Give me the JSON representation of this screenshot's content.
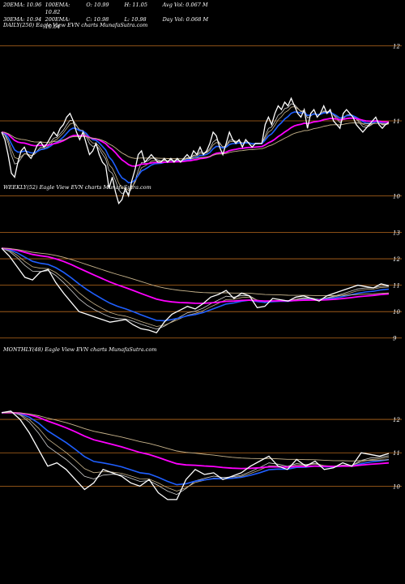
{
  "stats": {
    "row1": [
      "20EMA: 10.96",
      "100EMA: 10.82",
      "O: 10.99",
      "Avg Vol: 0.067 M"
    ],
    "row2": [
      "30EMA: 10.94",
      "200EMA: 10.64",
      "C: 10.98",
      "L: 10.98",
      "Day Vol: 0.068 M"
    ],
    "row1_mid": "H: 11.05"
  },
  "panels": {
    "daily_title": "DAILY(250) Eagle View EVN charts MunafaSutra.com",
    "weekly_title": "WEEKLY(52) Eagle View EVN charts MunafaSutra.com",
    "monthly_title": "MONTHLY(48) Eagle View EVN charts MunafaSutra.com"
  },
  "colors": {
    "background": "#000000",
    "price": "#ffffff",
    "ema_blue": "#1f5fff",
    "ema_magenta": "#ff00ff",
    "ema_tan": "#c8b48c",
    "ema_gray": "#d0d0d0",
    "grid": "#b86a1e"
  },
  "chart_data": [
    {
      "type": "line",
      "title": "DAILY(250) Eagle View EVN charts MunafaSutra.com",
      "y_ticks": [
        12,
        11,
        10
      ],
      "ylim": [
        9.8,
        12.2
      ],
      "series": [
        {
          "values": [
            10.85,
            10.75,
            10.55,
            10.3,
            10.25,
            10.45,
            10.6,
            10.65,
            10.55,
            10.5,
            10.58,
            10.68,
            10.72,
            10.65,
            10.7,
            10.78,
            10.85,
            10.8,
            10.9,
            10.95,
            11.05,
            11.1,
            11.0,
            10.85,
            10.75,
            10.85,
            10.7,
            10.55,
            10.6,
            10.7,
            10.55,
            10.45,
            10.4,
            10.1,
            10.25,
            10.05,
            9.9,
            9.95,
            10.1,
            10.0,
            10.2,
            10.35,
            10.55,
            10.6,
            10.45,
            10.5,
            10.55,
            10.5,
            10.45,
            10.45,
            10.5,
            10.45,
            10.5,
            10.45,
            10.5,
            10.45,
            10.5,
            10.55,
            10.5,
            10.6,
            10.55,
            10.65,
            10.55,
            10.6,
            10.7,
            10.85,
            10.8,
            10.65,
            10.55,
            10.7,
            10.85,
            10.75,
            10.7,
            10.75,
            10.65,
            10.75,
            10.7,
            10.65,
            10.7,
            10.7,
            10.7,
            10.95,
            11.05,
            10.95,
            11.1,
            11.2,
            11.15,
            11.25,
            11.2,
            11.3,
            11.2,
            11.1,
            11.05,
            11.15,
            10.9,
            11.1,
            11.15,
            11.05,
            11.1,
            11.2,
            11.1,
            11.15,
            11.0,
            10.95,
            10.9,
            11.1,
            11.15,
            11.1,
            11.05,
            10.95,
            10.9,
            10.85,
            10.9,
            10.95,
            11.0,
            11.05,
            10.95,
            10.9,
            10.95,
            10.98
          ]
        }
      ]
    },
    {
      "type": "line",
      "title": "WEEKLY(52) Eagle View EVN charts MunafaSutra.com",
      "y_ticks": [
        13,
        12,
        11,
        10,
        9
      ],
      "ylim": [
        8.9,
        13.2
      ],
      "series": [
        {
          "values": [
            12.4,
            12.1,
            11.7,
            11.3,
            11.2,
            11.5,
            11.6,
            11.1,
            10.7,
            10.35,
            10.0,
            9.9,
            9.8,
            9.7,
            9.6,
            9.65,
            9.7,
            9.5,
            9.35,
            9.3,
            9.2,
            9.6,
            9.9,
            10.05,
            10.2,
            10.1,
            10.3,
            10.55,
            10.65,
            10.8,
            10.5,
            10.7,
            10.6,
            10.15,
            10.2,
            10.5,
            10.45,
            10.4,
            10.55,
            10.6,
            10.5,
            10.4,
            10.6,
            10.7,
            10.8,
            10.9,
            11.0,
            10.95,
            10.9,
            11.05,
            10.98
          ]
        }
      ]
    },
    {
      "type": "line",
      "title": "MONTHLY(48) Eagle View EVN charts MunafaSutra.com",
      "y_ticks": [
        12,
        11,
        10
      ],
      "ylim": [
        9.5,
        12.9
      ],
      "series": [
        {
          "values": [
            12.2,
            12.25,
            12.0,
            11.6,
            11.1,
            10.6,
            10.7,
            10.5,
            10.2,
            9.9,
            10.1,
            10.5,
            10.4,
            10.3,
            10.1,
            10.0,
            10.2,
            9.8,
            9.6,
            9.6,
            10.2,
            10.5,
            10.35,
            10.4,
            10.2,
            10.3,
            10.4,
            10.6,
            10.75,
            10.9,
            10.6,
            10.5,
            10.8,
            10.6,
            10.75,
            10.5,
            10.55,
            10.7,
            10.6,
            11.0,
            10.95,
            10.9,
            10.98
          ]
        }
      ]
    }
  ]
}
